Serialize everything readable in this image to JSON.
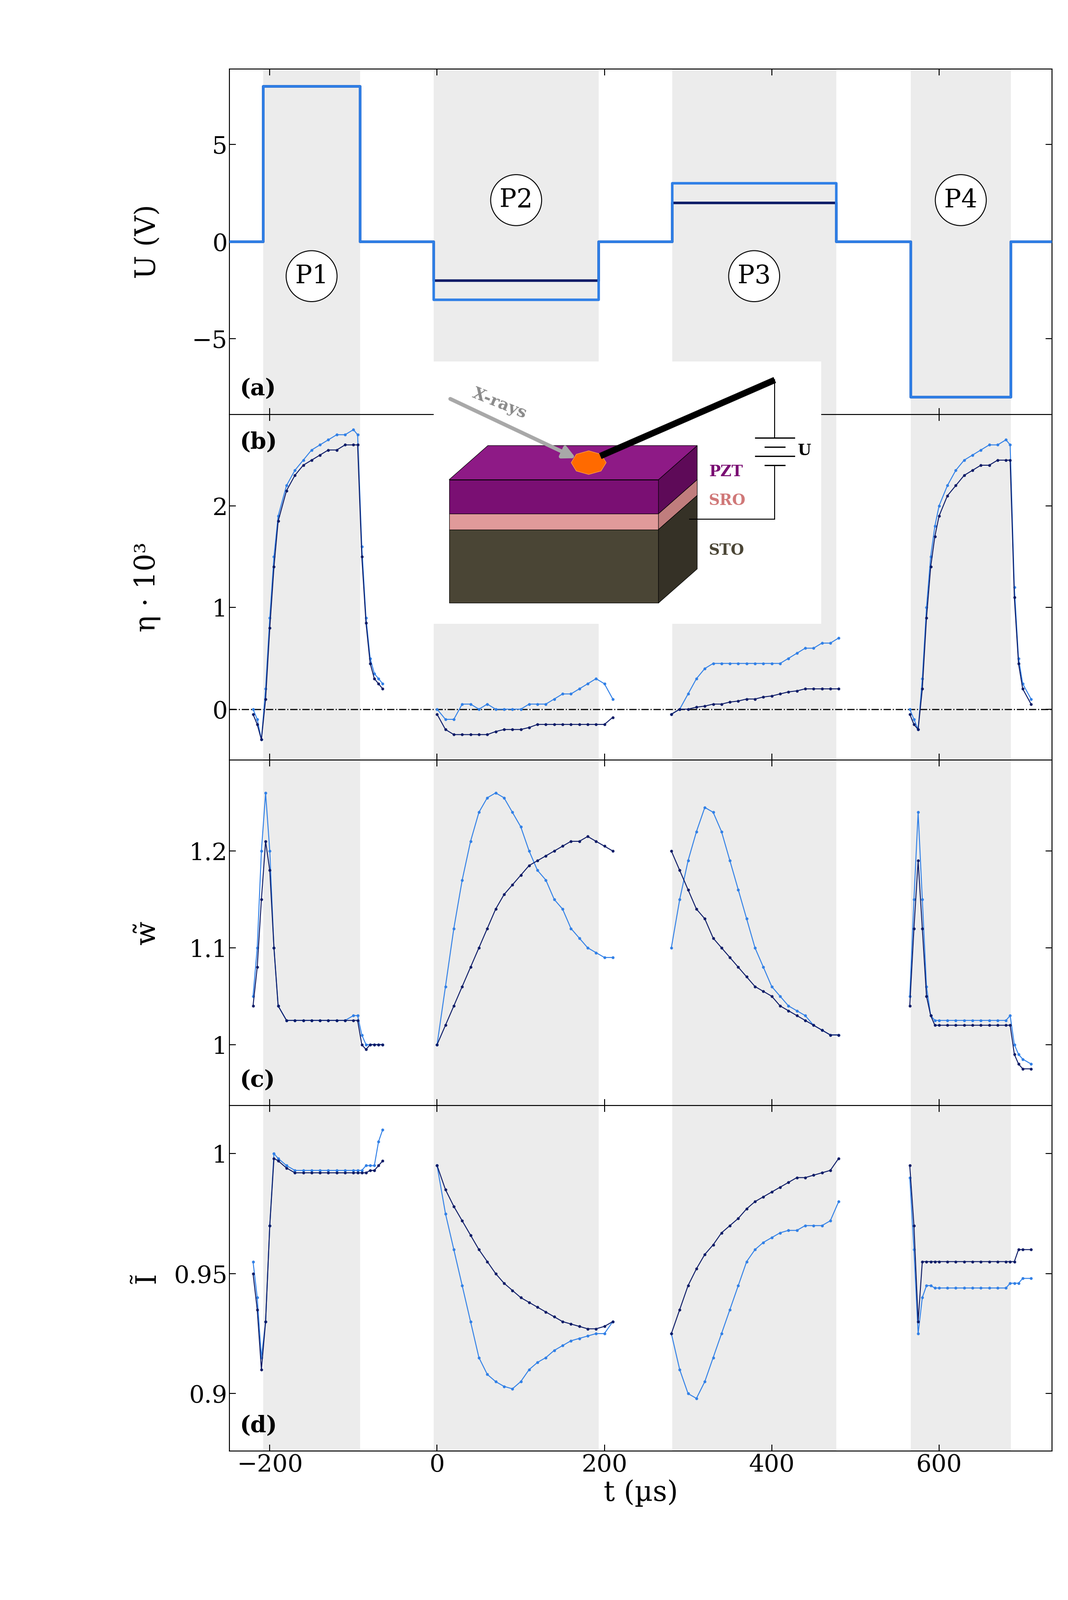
{
  "chart_data": [
    {
      "type": "line",
      "ylabel": "U (V)",
      "annotations": [
        "(a)"
      ],
      "x": [
        -248,
        -208,
        -208,
        -92,
        -92,
        -4,
        -4,
        193,
        193,
        281,
        281,
        477,
        477,
        566,
        566,
        686,
        686,
        735
      ],
      "series": [
        {
          "color": "#0b1a66",
          "values": [
            0,
            0,
            8,
            8,
            0,
            0,
            -2,
            -2,
            0,
            0,
            2,
            2,
            0,
            0,
            -8,
            -8,
            0,
            0
          ]
        },
        {
          "color": "#2f7fe6",
          "values": [
            0,
            0,
            8,
            8,
            0,
            0,
            -3,
            -3,
            0,
            0,
            3,
            3,
            0,
            0,
            -8,
            -8,
            0,
            0
          ]
        }
      ],
      "xlim": [
        -248,
        735
      ],
      "xticks": [
        {
          "value": -200,
          "label": "−200"
        },
        0,
        200,
        400,
        600
      ],
      "ylim": [
        -8.9,
        8.9
      ],
      "yticks": [
        {
          "value": -5,
          "label": "−5"
        },
        0,
        5
      ],
      "tick_labels": "y",
      "pulses": [
        {
          "label": "P1",
          "start": -208,
          "end": -92
        },
        {
          "label": "P2",
          "start": -4,
          "end": 193
        },
        {
          "label": "P3",
          "start": 281,
          "end": 477
        },
        {
          "label": "P4",
          "start": 566,
          "end": 686
        }
      ]
    },
    {
      "type": "line",
      "ylabel": "η · 10³",
      "annotations": [
        "(b)"
      ],
      "marker": ".",
      "hline": 0,
      "x": [
        -220,
        -215,
        -210,
        -205,
        -200,
        -195,
        -190,
        -180,
        -170,
        -160,
        -150,
        -140,
        -130,
        -120,
        -110,
        -100,
        -95,
        -90,
        -85,
        -80,
        -75,
        -70,
        -65,
        -30,
        0,
        10,
        20,
        30,
        40,
        50,
        60,
        70,
        80,
        90,
        100,
        110,
        120,
        130,
        140,
        150,
        160,
        170,
        180,
        190,
        200,
        210,
        245,
        280,
        290,
        300,
        310,
        320,
        330,
        340,
        350,
        360,
        370,
        380,
        390,
        400,
        410,
        420,
        430,
        440,
        450,
        460,
        470,
        480,
        522,
        565,
        570,
        575,
        580,
        585,
        590,
        595,
        600,
        610,
        620,
        630,
        640,
        650,
        660,
        670,
        680,
        685,
        690,
        695,
        700,
        710
      ],
      "series": [
        {
          "color": "#2f7fe6",
          "values": [
            0.0,
            -0.1,
            -0.3,
            0.2,
            0.9,
            1.5,
            1.9,
            2.2,
            2.35,
            2.45,
            2.55,
            2.6,
            2.65,
            2.7,
            2.7,
            2.75,
            2.7,
            1.6,
            0.9,
            0.5,
            0.35,
            0.3,
            0.25,
            null,
            0.0,
            -0.1,
            -0.1,
            0.05,
            0.05,
            0.0,
            0.05,
            0.0,
            0.0,
            0.0,
            0.0,
            0.05,
            0.05,
            0.05,
            0.1,
            0.15,
            0.15,
            0.2,
            0.25,
            0.3,
            0.25,
            0.1,
            null,
            -0.05,
            0.0,
            0.15,
            0.3,
            0.4,
            0.45,
            0.45,
            0.45,
            0.45,
            0.45,
            0.45,
            0.45,
            0.45,
            0.45,
            0.5,
            0.55,
            0.6,
            0.6,
            0.65,
            0.65,
            0.7,
            null,
            0.0,
            -0.1,
            -0.2,
            0.3,
            1.0,
            1.5,
            1.8,
            2.0,
            2.2,
            2.35,
            2.45,
            2.5,
            2.55,
            2.6,
            2.6,
            2.65,
            2.6,
            1.2,
            0.5,
            0.25,
            0.1
          ]
        },
        {
          "color": "#0b1a66",
          "values": [
            -0.05,
            -0.15,
            -0.3,
            0.1,
            0.8,
            1.4,
            1.85,
            2.15,
            2.3,
            2.4,
            2.45,
            2.5,
            2.55,
            2.55,
            2.6,
            2.6,
            2.6,
            1.5,
            0.85,
            0.45,
            0.3,
            0.25,
            0.2,
            null,
            -0.05,
            -0.2,
            -0.25,
            -0.25,
            -0.25,
            -0.25,
            -0.25,
            -0.22,
            -0.2,
            -0.2,
            -0.2,
            -0.18,
            -0.15,
            -0.15,
            -0.15,
            -0.15,
            -0.15,
            -0.15,
            -0.15,
            -0.15,
            -0.15,
            -0.08,
            null,
            -0.05,
            0.0,
            0.0,
            0.02,
            0.03,
            0.05,
            0.05,
            0.07,
            0.08,
            0.1,
            0.1,
            0.12,
            0.13,
            0.15,
            0.17,
            0.18,
            0.2,
            0.2,
            0.2,
            0.2,
            0.2,
            null,
            -0.05,
            -0.15,
            -0.2,
            0.2,
            0.9,
            1.4,
            1.7,
            1.9,
            2.1,
            2.2,
            2.3,
            2.35,
            2.4,
            2.4,
            2.45,
            2.45,
            2.45,
            1.1,
            0.45,
            0.2,
            0.05
          ]
        }
      ],
      "xlim": [
        -248,
        735
      ],
      "xticks": [
        {
          "value": -200,
          "label": "−200"
        },
        0,
        200,
        400,
        600
      ],
      "ylim": [
        -0.5,
        2.9
      ],
      "yticks": [
        0,
        1,
        2
      ],
      "tick_labels": "y"
    },
    {
      "type": "line",
      "ylabel": "w̃",
      "annotations": [
        "(c)"
      ],
      "marker": ".",
      "x": [
        -220,
        -215,
        -210,
        -205,
        -200,
        -195,
        -190,
        -180,
        -170,
        -160,
        -150,
        -140,
        -130,
        -120,
        -110,
        -100,
        -95,
        -90,
        -85,
        -80,
        -75,
        -70,
        -65,
        -30,
        0,
        10,
        20,
        30,
        40,
        50,
        60,
        70,
        80,
        90,
        100,
        110,
        120,
        130,
        140,
        150,
        160,
        170,
        180,
        190,
        200,
        210,
        245,
        280,
        290,
        300,
        310,
        320,
        330,
        340,
        350,
        360,
        370,
        380,
        390,
        400,
        410,
        420,
        430,
        440,
        450,
        460,
        470,
        480,
        522,
        565,
        570,
        575,
        580,
        585,
        590,
        595,
        600,
        610,
        620,
        630,
        640,
        650,
        660,
        670,
        680,
        685,
        690,
        695,
        700,
        710
      ],
      "series": [
        {
          "color": "#2f7fe6",
          "values": [
            1.05,
            1.1,
            1.2,
            1.26,
            1.2,
            1.1,
            1.04,
            1.025,
            1.025,
            1.025,
            1.025,
            1.025,
            1.025,
            1.025,
            1.025,
            1.03,
            1.03,
            1.01,
            1.0,
            1.0,
            1.0,
            1.0,
            1.0,
            null,
            1.0,
            1.06,
            1.12,
            1.17,
            1.21,
            1.24,
            1.255,
            1.26,
            1.255,
            1.24,
            1.225,
            1.2,
            1.18,
            1.17,
            1.15,
            1.14,
            1.12,
            1.11,
            1.1,
            1.095,
            1.09,
            1.09,
            null,
            1.1,
            1.15,
            1.19,
            1.22,
            1.245,
            1.24,
            1.22,
            1.19,
            1.16,
            1.13,
            1.1,
            1.08,
            1.06,
            1.05,
            1.04,
            1.035,
            1.03,
            1.02,
            1.015,
            1.01,
            1.01,
            null,
            1.05,
            1.15,
            1.24,
            1.15,
            1.06,
            1.03,
            1.025,
            1.025,
            1.025,
            1.025,
            1.025,
            1.025,
            1.025,
            1.025,
            1.025,
            1.025,
            1.03,
            1.0,
            0.99,
            0.985,
            0.98
          ]
        },
        {
          "color": "#0b1a66",
          "values": [
            1.04,
            1.08,
            1.15,
            1.21,
            1.18,
            1.1,
            1.04,
            1.025,
            1.025,
            1.025,
            1.025,
            1.025,
            1.025,
            1.025,
            1.025,
            1.025,
            1.025,
            1.0,
            0.995,
            1.0,
            1.0,
            1.0,
            1.0,
            null,
            1.0,
            1.02,
            1.04,
            1.06,
            1.08,
            1.1,
            1.12,
            1.14,
            1.155,
            1.165,
            1.175,
            1.185,
            1.19,
            1.195,
            1.2,
            1.205,
            1.21,
            1.21,
            1.215,
            1.21,
            1.205,
            1.2,
            null,
            1.2,
            1.18,
            1.16,
            1.14,
            1.13,
            1.11,
            1.1,
            1.09,
            1.08,
            1.07,
            1.06,
            1.055,
            1.05,
            1.04,
            1.035,
            1.03,
            1.025,
            1.02,
            1.015,
            1.01,
            1.01,
            null,
            1.04,
            1.12,
            1.19,
            1.12,
            1.05,
            1.03,
            1.02,
            1.02,
            1.02,
            1.02,
            1.02,
            1.02,
            1.02,
            1.02,
            1.02,
            1.02,
            1.02,
            0.99,
            0.98,
            0.975,
            0.975
          ]
        }
      ],
      "xlim": [
        -248,
        735
      ],
      "xticks": [
        {
          "value": -200,
          "label": "−200"
        },
        0,
        200,
        400,
        600
      ],
      "ylim": [
        0.937,
        1.294
      ],
      "yticks": [
        1,
        1.1,
        1.2
      ],
      "tick_labels": "y"
    },
    {
      "type": "line",
      "ylabel": "Ĩ",
      "xlabel": "t (µs)",
      "annotations": [
        "(d)"
      ],
      "marker": ".",
      "x": [
        -220,
        -215,
        -210,
        -205,
        -200,
        -195,
        -190,
        -180,
        -170,
        -160,
        -150,
        -140,
        -130,
        -120,
        -110,
        -100,
        -95,
        -90,
        -85,
        -80,
        -75,
        -70,
        -65,
        -30,
        0,
        10,
        20,
        30,
        40,
        50,
        60,
        70,
        80,
        90,
        100,
        110,
        120,
        130,
        140,
        150,
        160,
        170,
        180,
        190,
        200,
        210,
        245,
        280,
        290,
        300,
        310,
        320,
        330,
        340,
        350,
        360,
        370,
        380,
        390,
        400,
        410,
        420,
        430,
        440,
        450,
        460,
        470,
        480,
        522,
        565,
        570,
        575,
        580,
        585,
        590,
        595,
        600,
        610,
        620,
        630,
        640,
        650,
        660,
        670,
        680,
        685,
        690,
        695,
        700,
        710
      ],
      "series": [
        {
          "color": "#2f7fe6",
          "values": [
            0.955,
            0.94,
            0.915,
            0.93,
            0.97,
            1.0,
            0.998,
            0.995,
            0.993,
            0.993,
            0.993,
            0.993,
            0.993,
            0.993,
            0.993,
            0.993,
            0.993,
            0.993,
            0.995,
            0.995,
            0.995,
            1.005,
            1.01,
            null,
            0.995,
            0.975,
            0.96,
            0.945,
            0.93,
            0.915,
            0.908,
            0.905,
            0.903,
            0.902,
            0.905,
            0.91,
            0.913,
            0.915,
            0.918,
            0.92,
            0.922,
            0.923,
            0.924,
            0.925,
            0.925,
            0.93,
            null,
            0.925,
            0.91,
            0.9,
            0.898,
            0.905,
            0.915,
            0.925,
            0.935,
            0.945,
            0.955,
            0.96,
            0.963,
            0.965,
            0.967,
            0.968,
            0.968,
            0.97,
            0.97,
            0.97,
            0.972,
            0.98,
            null,
            0.99,
            0.96,
            0.925,
            0.94,
            0.945,
            0.945,
            0.944,
            0.944,
            0.944,
            0.944,
            0.944,
            0.944,
            0.944,
            0.944,
            0.944,
            0.944,
            0.946,
            0.946,
            0.946,
            0.948,
            0.948
          ]
        },
        {
          "color": "#0b1a66",
          "values": [
            0.95,
            0.935,
            0.91,
            0.93,
            0.97,
            0.998,
            0.997,
            0.994,
            0.992,
            0.992,
            0.992,
            0.992,
            0.992,
            0.992,
            0.992,
            0.992,
            0.992,
            0.992,
            0.992,
            0.993,
            0.993,
            0.995,
            0.997,
            null,
            0.995,
            0.985,
            0.978,
            0.972,
            0.966,
            0.96,
            0.955,
            0.95,
            0.946,
            0.943,
            0.94,
            0.938,
            0.936,
            0.934,
            0.932,
            0.93,
            0.929,
            0.928,
            0.927,
            0.927,
            0.928,
            0.93,
            null,
            0.925,
            0.935,
            0.945,
            0.952,
            0.958,
            0.962,
            0.967,
            0.97,
            0.973,
            0.977,
            0.98,
            0.982,
            0.984,
            0.986,
            0.988,
            0.99,
            0.99,
            0.991,
            0.992,
            0.993,
            0.998,
            null,
            0.995,
            0.97,
            0.93,
            0.955,
            0.955,
            0.955,
            0.955,
            0.955,
            0.955,
            0.955,
            0.955,
            0.955,
            0.955,
            0.955,
            0.955,
            0.955,
            0.955,
            0.955,
            0.96,
            0.96,
            0.96
          ]
        }
      ],
      "xlim": [
        -248,
        735
      ],
      "xticks": [
        {
          "value": -200,
          "label": "−200"
        },
        0,
        200,
        400,
        600
      ],
      "ylim": [
        0.876,
        1.02
      ],
      "yticks": [
        0.9,
        0.95,
        1
      ]
    }
  ],
  "inset": {
    "beam": "X-rays",
    "layers": [
      "PZT",
      "SRO",
      "STO"
    ],
    "source": "U"
  }
}
